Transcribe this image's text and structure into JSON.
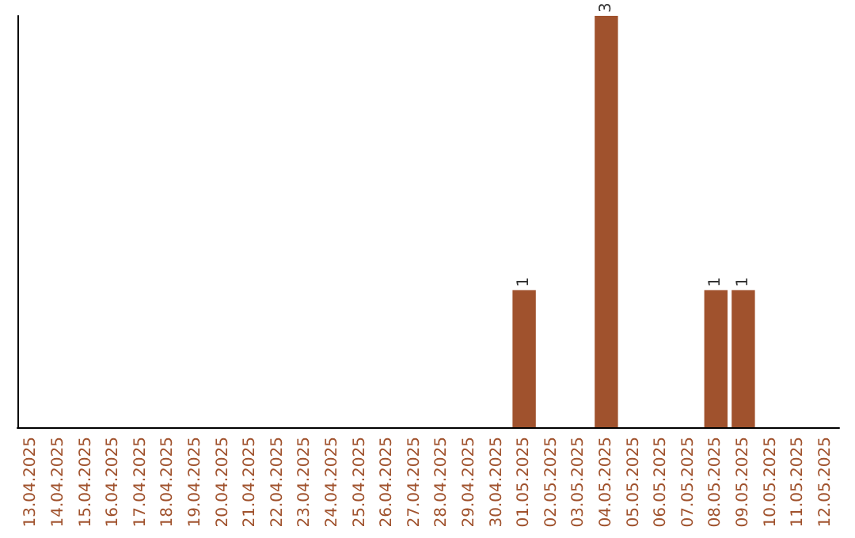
{
  "chart_data": {
    "type": "bar",
    "categories": [
      "13.04.2025",
      "14.04.2025",
      "15.04.2025",
      "16.04.2025",
      "17.04.2025",
      "18.04.2025",
      "19.04.2025",
      "20.04.2025",
      "21.04.2025",
      "22.04.2025",
      "23.04.2025",
      "24.04.2025",
      "25.04.2025",
      "26.04.2025",
      "27.04.2025",
      "28.04.2025",
      "29.04.2025",
      "30.04.2025",
      "01.05.2025",
      "02.05.2025",
      "03.05.2025",
      "04.05.2025",
      "05.05.2025",
      "06.05.2025",
      "07.05.2025",
      "08.05.2025",
      "09.05.2025",
      "10.05.2025",
      "11.05.2025",
      "12.05.2025"
    ],
    "values": [
      null,
      null,
      null,
      null,
      null,
      null,
      null,
      null,
      null,
      null,
      null,
      null,
      null,
      null,
      null,
      null,
      null,
      null,
      1,
      null,
      null,
      3,
      null,
      null,
      null,
      1,
      1,
      null,
      null,
      null
    ],
    "color": "#a0522d",
    "value_labels": [
      null,
      null,
      null,
      null,
      null,
      null,
      null,
      null,
      null,
      null,
      null,
      null,
      null,
      null,
      null,
      null,
      null,
      null,
      "1",
      null,
      null,
      "3",
      null,
      null,
      null,
      "1",
      "1",
      null,
      null,
      null
    ],
    "tick_labels": "x",
    "grid": false
  }
}
